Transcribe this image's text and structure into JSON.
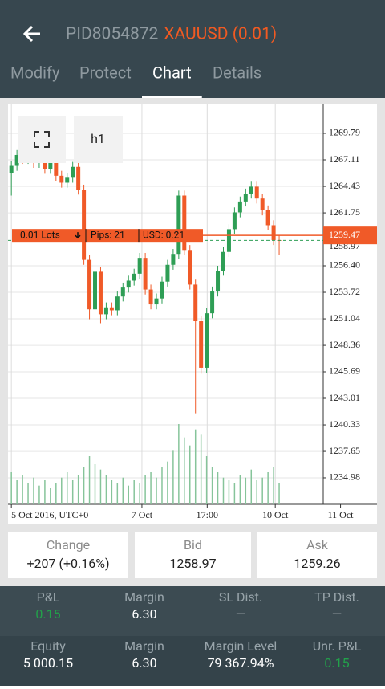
{
  "header": {
    "account": "PID8054872",
    "instrument": "XAUUSD (0.01)"
  },
  "tabs": [
    "Modify",
    "Protect",
    "Chart",
    "Details"
  ],
  "active_tab": 2,
  "chart_data": {
    "type": "candlestick",
    "timeframe": "h1",
    "up_color": "#2e9e55",
    "down_color": "#f05a28",
    "volume_color": "#86c49a",
    "open": [
      1265.8,
      1266.5,
      1267.6,
      1267.2,
      1267.9,
      1266.8,
      1267.3,
      1266.2,
      1266.9,
      1265.5,
      1264.8,
      1265.3,
      1266.4,
      1264.1,
      1257.0,
      1252.0,
      1255.8,
      1251.5,
      1252.2,
      1251.9,
      1253.3,
      1254.2,
      1254.9,
      1255.6,
      1257.2,
      1254.0,
      1252.5,
      1253.1,
      1254.8,
      1256.5,
      1257.6,
      1263.5,
      1258.0,
      1254.5,
      1250.8,
      1246.1,
      1251.6,
      1253.8,
      1255.9,
      1257.8,
      1260.1,
      1261.8,
      1262.9,
      1263.7,
      1264.4,
      1263.2,
      1262.0,
      1260.5,
      1259.0
    ],
    "high": [
      1267.0,
      1268.1,
      1268.1,
      1268.4,
      1268.4,
      1267.8,
      1267.8,
      1267.4,
      1267.4,
      1266.0,
      1265.8,
      1266.9,
      1266.9,
      1264.6,
      1257.5,
      1256.3,
      1256.3,
      1252.7,
      1252.7,
      1253.8,
      1254.7,
      1255.4,
      1256.1,
      1257.7,
      1257.7,
      1254.5,
      1253.6,
      1255.3,
      1257.0,
      1258.1,
      1264.0,
      1264.0,
      1258.5,
      1255.0,
      1251.3,
      1252.1,
      1254.3,
      1256.4,
      1258.3,
      1260.6,
      1262.3,
      1263.4,
      1264.2,
      1264.9,
      1264.9,
      1263.7,
      1262.5,
      1261.0,
      1259.5
    ],
    "low": [
      1263.5,
      1266.0,
      1266.7,
      1266.7,
      1266.3,
      1266.3,
      1265.7,
      1265.7,
      1265.0,
      1264.3,
      1264.3,
      1264.8,
      1263.6,
      1256.5,
      1251.0,
      1251.5,
      1250.6,
      1251.0,
      1251.4,
      1251.4,
      1252.8,
      1253.7,
      1254.4,
      1255.1,
      1253.5,
      1252.0,
      1252.0,
      1252.6,
      1254.3,
      1256.0,
      1257.1,
      1257.5,
      1254.0,
      1241.5,
      1245.5,
      1245.6,
      1251.1,
      1253.3,
      1255.4,
      1257.3,
      1259.6,
      1261.3,
      1262.4,
      1263.2,
      1262.7,
      1261.5,
      1260.0,
      1258.5,
      1257.5
    ],
    "close": [
      1266.5,
      1267.6,
      1267.2,
      1267.9,
      1266.8,
      1267.3,
      1266.2,
      1266.9,
      1265.5,
      1264.8,
      1265.3,
      1266.4,
      1264.1,
      1257.0,
      1252.0,
      1255.8,
      1251.5,
      1252.2,
      1251.9,
      1253.3,
      1254.2,
      1254.9,
      1255.6,
      1257.2,
      1254.0,
      1252.5,
      1253.1,
      1254.8,
      1256.5,
      1257.6,
      1263.5,
      1258.0,
      1254.5,
      1250.8,
      1246.1,
      1251.6,
      1253.8,
      1255.9,
      1257.8,
      1260.1,
      1261.8,
      1262.9,
      1263.7,
      1264.4,
      1263.2,
      1262.0,
      1260.5,
      1259.0,
      1258.97
    ],
    "volume": [
      12,
      9,
      11,
      8,
      10,
      7,
      9,
      6,
      8,
      10,
      12,
      9,
      11,
      14,
      18,
      15,
      13,
      11,
      9,
      8,
      10,
      7,
      9,
      8,
      11,
      12,
      10,
      14,
      16,
      20,
      30,
      25,
      22,
      28,
      26,
      18,
      14,
      12,
      10,
      9,
      8,
      11,
      10,
      13,
      9,
      10,
      12,
      14,
      8
    ],
    "xlim": [
      -0.6,
      55.9
    ],
    "xticks": [
      {
        "value": 0,
        "label": "5 Oct 2016, UTC+0"
      },
      {
        "value": 23.4,
        "label": "7 Oct"
      },
      {
        "value": 35.1,
        "label": "17:00"
      },
      {
        "value": 47.3,
        "label": "10 Oct"
      },
      {
        "value": 59,
        "label": "11 Oct"
      }
    ],
    "ylim": [
      1232.3,
      1272.71
    ],
    "yticks": [
      1269.79,
      1267.11,
      1264.43,
      1261.75,
      {
        "value": 1256.4,
        "label": "1256.40"
      },
      1253.72,
      1251.04,
      1248.36,
      1245.69,
      1243.01,
      1240.33,
      1237.65,
      1234.98
    ],
    "grid": true,
    "order_line": {
      "price": 1259.47,
      "lots": "0.01 Lots",
      "pips": "Pips: 21",
      "usd": "USD: 0.21",
      "color": "#f05a28"
    },
    "bid_line": {
      "price": 1258.97,
      "color": "#2e9e55"
    }
  },
  "quote": [
    {
      "label": "Change",
      "value": "+207 (+0.16%)"
    },
    {
      "label": "Bid",
      "value": "1258.97"
    },
    {
      "label": "Ask",
      "value": "1259.26"
    }
  ],
  "stats": [
    [
      {
        "label": "P&L",
        "value": "0.15",
        "positive": true
      },
      {
        "label": "Margin",
        "value": "6.30"
      },
      {
        "label": "SL Dist.",
        "value": "—"
      },
      {
        "label": "TP Dist.",
        "value": "—"
      }
    ],
    [
      {
        "label": "Equity",
        "value": "5 000.15"
      },
      {
        "label": "Margin",
        "value": "6.30"
      },
      {
        "label": "Margin Level",
        "value": "79 367.94%"
      },
      {
        "label": "Unr. P&L",
        "value": "0.15",
        "positive": true
      }
    ]
  ]
}
